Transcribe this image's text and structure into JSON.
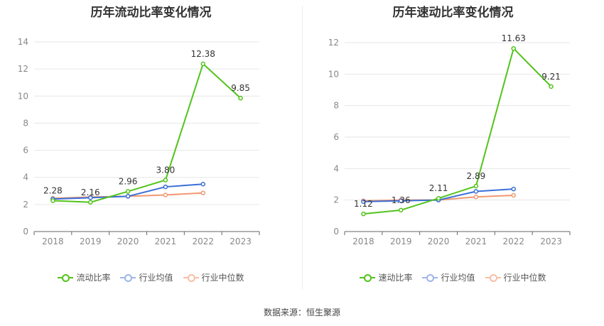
{
  "source": "数据来源：恒生聚源",
  "chart_data": [
    {
      "type": "line",
      "title": "历年流动比率变化情况",
      "categories": [
        "2018",
        "2019",
        "2020",
        "2021",
        "2022",
        "2023"
      ],
      "ylim": [
        0,
        14
      ],
      "yticks": [
        "0",
        "2",
        "4",
        "6",
        "8",
        "10",
        "12",
        "14"
      ],
      "grid": true,
      "legend_position": "bottom",
      "series": [
        {
          "name": "流动比率",
          "color": "#52c41a",
          "values": [
            2.28,
            2.16,
            2.96,
            3.8,
            12.38,
            9.85
          ],
          "labels": [
            "2.28",
            "2.16",
            "2.96",
            "3.80",
            "12.38",
            "9.85"
          ]
        },
        {
          "name": "行业均值",
          "color": "#3b6fd6",
          "values": [
            2.4,
            2.5,
            2.6,
            3.3,
            3.5,
            null
          ]
        },
        {
          "name": "行业中位数",
          "color": "#f29872",
          "values": [
            2.45,
            2.55,
            2.6,
            2.7,
            2.85,
            null
          ]
        }
      ]
    },
    {
      "type": "line",
      "title": "历年速动比率变化情况",
      "categories": [
        "2018",
        "2019",
        "2020",
        "2021",
        "2022",
        "2023"
      ],
      "ylim": [
        0,
        12
      ],
      "yticks": [
        "0",
        "2",
        "4",
        "6",
        "8",
        "10",
        "12"
      ],
      "grid": true,
      "legend_position": "bottom",
      "series": [
        {
          "name": "速动比率",
          "color": "#52c41a",
          "values": [
            1.12,
            1.36,
            2.11,
            2.89,
            11.63,
            9.21
          ],
          "labels": [
            "1.12",
            "1.36",
            "2.11",
            "2.89",
            "11.63",
            "9.21"
          ]
        },
        {
          "name": "行业均值",
          "color": "#3b6fd6",
          "values": [
            1.9,
            1.95,
            2.0,
            2.55,
            2.7,
            null
          ]
        },
        {
          "name": "行业中位数",
          "color": "#f29872",
          "values": [
            1.95,
            2.0,
            2.0,
            2.2,
            2.3,
            null
          ]
        }
      ]
    }
  ]
}
